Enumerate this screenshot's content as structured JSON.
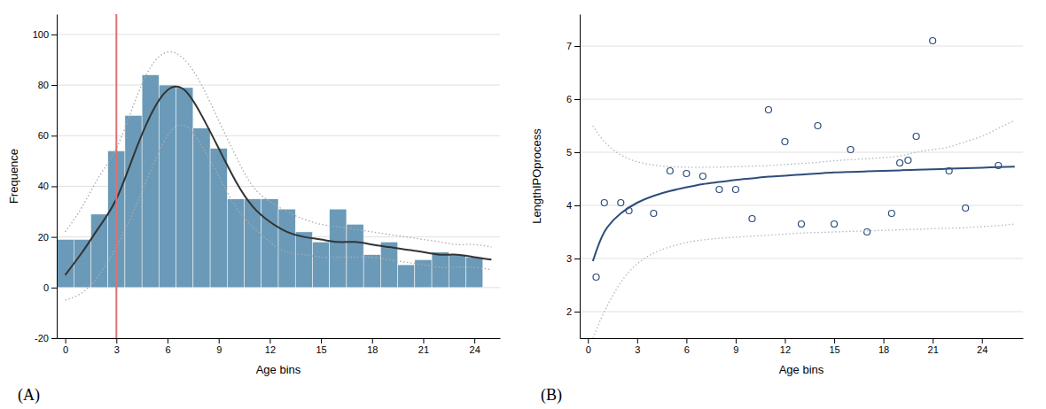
{
  "chart_data": [
    {
      "type": "bar",
      "title": "(A)",
      "xlabel": "Age bins",
      "ylabel": "Frequence",
      "xlim": [
        -0.5,
        25.5
      ],
      "xticks": [
        0,
        3,
        6,
        9,
        12,
        15,
        18,
        21,
        24
      ],
      "ylim": [
        -20,
        108
      ],
      "yticks": [
        -20,
        0,
        20,
        40,
        60,
        80,
        100
      ],
      "grid": true,
      "series": [
        {
          "type": "bar",
          "color": "#6b9ab8",
          "x": [
            0,
            1,
            2,
            3,
            4,
            5,
            6,
            7,
            8,
            9,
            10,
            11,
            12,
            13,
            14,
            15,
            16,
            17,
            18,
            19,
            20,
            21,
            22,
            23,
            24
          ],
          "values": [
            19,
            19,
            29,
            54,
            68,
            84,
            80,
            79,
            63,
            55,
            35,
            35,
            35,
            31,
            22,
            18,
            31,
            25,
            13,
            18,
            9,
            11,
            14,
            13,
            12
          ]
        },
        {
          "type": "line",
          "color": "#333333",
          "line_style": "solid",
          "x": [
            0,
            1,
            2,
            3,
            4,
            5,
            6,
            7,
            8,
            9,
            10,
            11,
            12,
            13,
            14,
            15,
            16,
            17,
            18,
            19,
            20,
            21,
            22,
            23,
            24,
            25
          ],
          "values": [
            5,
            14,
            24,
            35,
            52,
            68,
            78,
            78,
            68,
            55,
            42,
            32,
            26,
            22,
            20,
            19,
            18,
            18,
            17,
            16,
            15,
            14,
            13,
            13,
            12,
            11
          ]
        },
        {
          "type": "line",
          "color": "#aaaaaa",
          "line_style": "dotted",
          "x": [
            0,
            1,
            2,
            3,
            4,
            5,
            6,
            7,
            8,
            9,
            10,
            11,
            12,
            13,
            14,
            15,
            16,
            17,
            18,
            19,
            20,
            21,
            22,
            23,
            24,
            25
          ],
          "values": [
            22,
            32,
            44,
            55,
            72,
            87,
            93,
            90,
            80,
            66,
            52,
            40,
            34,
            30,
            27,
            25,
            24,
            23,
            22,
            21,
            20,
            19,
            18,
            17,
            17,
            16
          ]
        },
        {
          "type": "line",
          "color": "#aaaaaa",
          "line_style": "dotted",
          "x": [
            0,
            1,
            2,
            3,
            4,
            5,
            6,
            7,
            8,
            9,
            10,
            11,
            12,
            13,
            14,
            15,
            16,
            17,
            18,
            19,
            20,
            21,
            22,
            23,
            24,
            25
          ],
          "values": [
            -5,
            -2,
            5,
            16,
            30,
            46,
            60,
            64,
            56,
            44,
            32,
            24,
            18,
            14,
            13,
            12,
            12,
            12,
            12,
            11,
            10,
            9,
            8,
            8,
            8,
            7
          ]
        }
      ],
      "annotations": [
        {
          "type": "vline",
          "x": 3,
          "color": "#e07070"
        }
      ]
    },
    {
      "type": "scatter",
      "title": "(B)",
      "xlabel": "Age bins",
      "ylabel": "LengthIPOprocess",
      "xlim": [
        -0.5,
        26.5
      ],
      "xticks": [
        0,
        3,
        6,
        9,
        12,
        15,
        18,
        21,
        24
      ],
      "ylim": [
        1.5,
        7.6
      ],
      "yticks": [
        2,
        3,
        4,
        5,
        6,
        7
      ],
      "grid": true,
      "series": [
        {
          "type": "scatter",
          "color": "#2e4d7b",
          "marker": "circle-open",
          "x": [
            0.5,
            1.0,
            2.0,
            2.5,
            4.0,
            5.0,
            6.0,
            7.0,
            8.0,
            9.0,
            10.0,
            11.0,
            12.0,
            13.0,
            14.0,
            15.0,
            16.0,
            17.0,
            18.5,
            19.0,
            19.5,
            20.0,
            21.0,
            22.0,
            23.0,
            25.0
          ],
          "values": [
            2.65,
            4.05,
            4.05,
            3.9,
            3.85,
            4.65,
            4.6,
            4.55,
            4.3,
            4.3,
            3.75,
            5.8,
            5.2,
            3.65,
            5.5,
            3.65,
            5.05,
            3.5,
            3.85,
            4.8,
            4.85,
            5.3,
            7.1,
            4.65,
            3.95,
            4.75
          ]
        },
        {
          "type": "line",
          "color": "#2e4d7b",
          "line_style": "solid",
          "x": [
            0.3,
            1,
            2,
            3,
            4,
            5,
            6,
            7,
            8,
            9,
            10,
            11,
            12,
            13,
            14,
            15,
            16,
            17,
            18,
            19,
            20,
            21,
            22,
            23,
            24,
            25,
            26
          ],
          "values": [
            2.95,
            3.5,
            3.85,
            4.05,
            4.18,
            4.27,
            4.34,
            4.4,
            4.44,
            4.48,
            4.51,
            4.54,
            4.56,
            4.58,
            4.6,
            4.62,
            4.63,
            4.64,
            4.65,
            4.66,
            4.67,
            4.68,
            4.69,
            4.7,
            4.71,
            4.72,
            4.73
          ]
        },
        {
          "type": "line",
          "color": "#b0b8c8",
          "line_style": "dotted",
          "x": [
            0.3,
            1,
            2,
            3,
            4,
            5,
            6,
            7,
            8,
            9,
            10,
            11,
            12,
            13,
            14,
            15,
            16,
            17,
            18,
            19,
            20,
            21,
            22,
            23,
            24,
            25,
            26
          ],
          "values": [
            5.5,
            5.2,
            4.95,
            4.82,
            4.76,
            4.73,
            4.72,
            4.72,
            4.72,
            4.73,
            4.74,
            4.75,
            4.77,
            4.79,
            4.81,
            4.84,
            4.86,
            4.88,
            4.9,
            4.93,
            5.0,
            5.05,
            5.1,
            5.2,
            5.3,
            5.45,
            5.6
          ]
        },
        {
          "type": "line",
          "color": "#b0b8c8",
          "line_style": "dotted",
          "x": [
            0.3,
            1,
            2,
            3,
            4,
            5,
            6,
            7,
            8,
            9,
            10,
            11,
            12,
            13,
            14,
            15,
            16,
            17,
            18,
            19,
            20,
            21,
            22,
            23,
            24,
            25,
            26
          ],
          "values": [
            1.5,
            2.0,
            2.55,
            2.9,
            3.1,
            3.22,
            3.3,
            3.35,
            3.38,
            3.4,
            3.42,
            3.44,
            3.46,
            3.48,
            3.49,
            3.5,
            3.51,
            3.52,
            3.53,
            3.54,
            3.55,
            3.56,
            3.57,
            3.58,
            3.6,
            3.62,
            3.65
          ]
        }
      ]
    }
  ]
}
